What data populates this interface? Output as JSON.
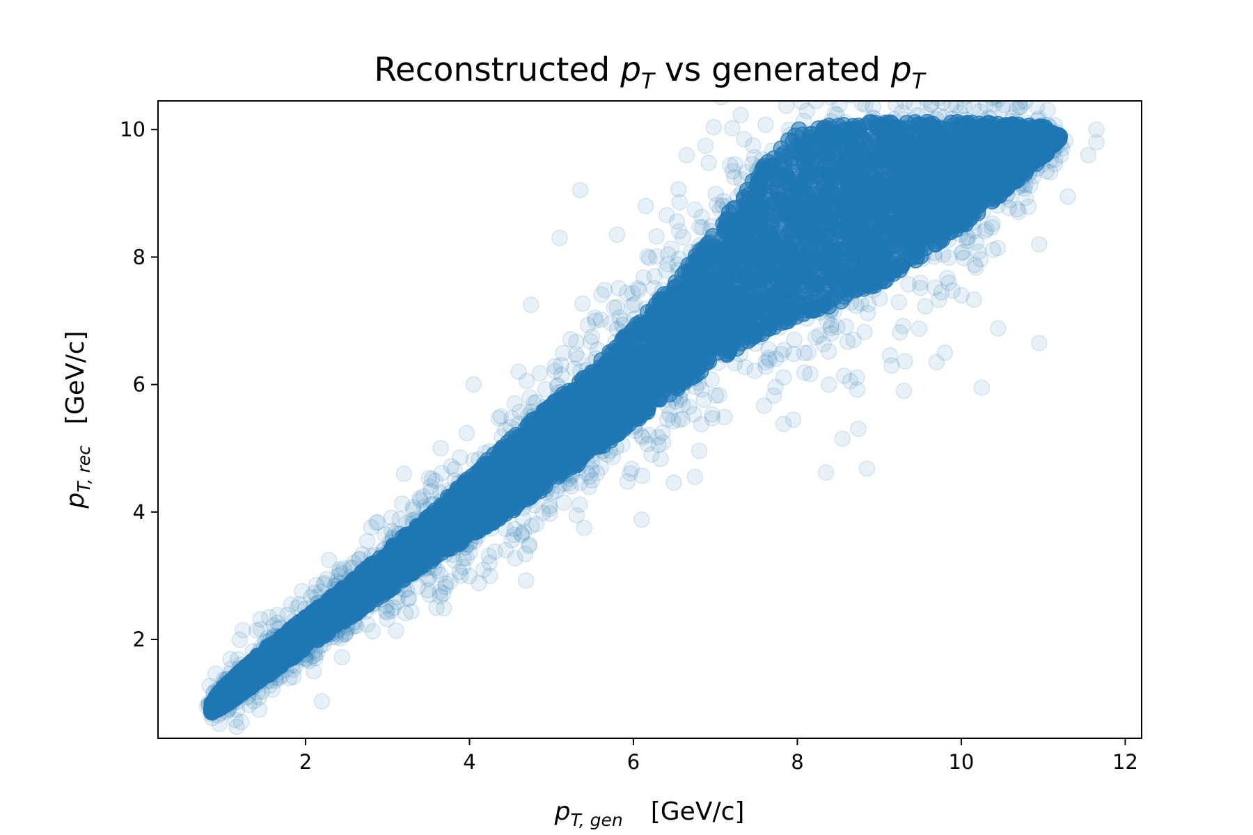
{
  "chart_data": {
    "type": "scatter",
    "title": {
      "prefix": "Reconstructed ",
      "var1": "p",
      "var1_sub": "T",
      "middle": " vs generated ",
      "var2": "p",
      "var2_sub": "T"
    },
    "xlabel": {
      "var": "p",
      "sub": "T, gen",
      "unit": "[GeV/c]"
    },
    "ylabel": {
      "var": "p",
      "sub": "T, rec",
      "unit": "[GeV/c]"
    },
    "xlim": [
      0.2,
      12.2
    ],
    "ylim": [
      0.45,
      10.45
    ],
    "x_ticks": [
      "2",
      "4",
      "6",
      "8",
      "10",
      "12"
    ],
    "y_ticks": [
      "2",
      "4",
      "6",
      "8",
      "10"
    ],
    "grid": false,
    "legend": "none",
    "marker_color": "#1f77b4",
    "marker_alpha": 0.1,
    "dense_band": {
      "x": [
        0.85,
        1.0,
        1.5,
        2.0,
        2.5,
        3.0,
        3.5,
        4.0,
        4.5,
        5.0,
        5.5,
        6.0,
        6.5,
        7.0,
        7.5,
        8.0,
        8.5,
        9.0,
        9.5,
        10.0,
        10.5,
        11.0,
        11.2
      ],
      "y_upper": [
        1.0,
        1.25,
        1.85,
        2.35,
        2.85,
        3.4,
        3.95,
        4.55,
        5.15,
        5.7,
        6.25,
        6.9,
        7.6,
        8.4,
        9.3,
        10.0,
        10.1,
        10.12,
        10.12,
        10.12,
        10.1,
        10.05,
        9.9
      ],
      "y_lower": [
        0.85,
        0.95,
        1.4,
        1.85,
        2.3,
        2.75,
        3.2,
        3.6,
        4.0,
        4.45,
        4.9,
        5.4,
        5.9,
        6.35,
        6.75,
        7.05,
        7.25,
        7.55,
        8.0,
        8.45,
        9.0,
        9.55,
        9.85
      ]
    },
    "outliers": [
      {
        "x": 3.2,
        "y": 4.6
      },
      {
        "x": 4.05,
        "y": 6.0
      },
      {
        "x": 4.75,
        "y": 7.25
      },
      {
        "x": 5.35,
        "y": 9.05
      },
      {
        "x": 5.1,
        "y": 8.3
      },
      {
        "x": 6.65,
        "y": 9.6
      },
      {
        "x": 8.55,
        "y": 5.15
      },
      {
        "x": 8.35,
        "y": 4.62
      },
      {
        "x": 8.85,
        "y": 4.68
      },
      {
        "x": 6.1,
        "y": 3.88
      },
      {
        "x": 4.25,
        "y": 3.0
      },
      {
        "x": 2.1,
        "y": 1.5
      },
      {
        "x": 2.2,
        "y": 1.03
      },
      {
        "x": 10.25,
        "y": 5.95
      },
      {
        "x": 10.95,
        "y": 6.65
      },
      {
        "x": 10.45,
        "y": 6.88
      },
      {
        "x": 10.95,
        "y": 8.2
      },
      {
        "x": 11.55,
        "y": 9.6
      },
      {
        "x": 11.65,
        "y": 10.0
      },
      {
        "x": 11.65,
        "y": 9.8
      },
      {
        "x": 11.3,
        "y": 8.95
      },
      {
        "x": 9.3,
        "y": 5.9
      },
      {
        "x": 9.8,
        "y": 6.5
      },
      {
        "x": 3.05,
        "y": 3.7
      },
      {
        "x": 2.65,
        "y": 3.25
      },
      {
        "x": 2.5,
        "y": 2.75
      },
      {
        "x": 1.9,
        "y": 2.5
      },
      {
        "x": 5.8,
        "y": 8.35
      },
      {
        "x": 6.15,
        "y": 8.8
      },
      {
        "x": 7.35,
        "y": 9.85
      },
      {
        "x": 7.9,
        "y": 10.0
      },
      {
        "x": 4.6,
        "y": 6.2
      },
      {
        "x": 3.65,
        "y": 5.0
      },
      {
        "x": 7.95,
        "y": 5.45
      },
      {
        "x": 6.75,
        "y": 4.55
      },
      {
        "x": 5.4,
        "y": 3.75
      },
      {
        "x": 1.0,
        "y": 0.96
      },
      {
        "x": 0.82,
        "y": 0.98
      },
      {
        "x": 9.15,
        "y": 6.3
      },
      {
        "x": 10.0,
        "y": 7.4
      }
    ]
  }
}
